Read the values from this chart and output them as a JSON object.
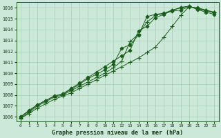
{
  "background_color": "#cce8d8",
  "line_color": "#1a5c1a",
  "title": "Graphe pression niveau de la mer (hPa)",
  "xlim": [
    -0.5,
    23.5
  ],
  "ylim": [
    1005.6,
    1016.5
  ],
  "yticks": [
    1006,
    1007,
    1008,
    1009,
    1010,
    1011,
    1012,
    1013,
    1014,
    1015,
    1016
  ],
  "xticks": [
    0,
    1,
    2,
    3,
    4,
    5,
    6,
    7,
    8,
    9,
    10,
    11,
    12,
    13,
    14,
    15,
    16,
    17,
    18,
    19,
    20,
    21,
    22,
    23
  ],
  "series": [
    {
      "y": [
        1006.0,
        1006.5,
        1007.1,
        1007.5,
        1007.9,
        1008.1,
        1008.5,
        1009.0,
        1009.5,
        1009.9,
        1010.3,
        1010.8,
        1012.3,
        1012.6,
        1013.5,
        1015.2,
        1015.4,
        1015.5,
        1015.7,
        1015.8,
        1016.1,
        1016.0,
        1015.8,
        1015.6
      ],
      "marker": "D",
      "ms": 2.5
    },
    {
      "y": [
        1005.9,
        1006.4,
        1007.0,
        1007.4,
        1007.8,
        1008.0,
        1008.4,
        1008.8,
        1009.2,
        1009.6,
        1010.0,
        1010.5,
        1011.1,
        1012.9,
        1013.6,
        1014.7,
        1015.3,
        1015.5,
        1015.8,
        1016.0,
        1016.15,
        1015.9,
        1015.75,
        1015.55
      ],
      "marker": "+",
      "ms": 4.0
    },
    {
      "y": [
        1006.0,
        1006.6,
        1007.1,
        1007.5,
        1007.9,
        1008.1,
        1008.6,
        1009.1,
        1009.6,
        1010.1,
        1010.6,
        1011.1,
        1011.6,
        1012.1,
        1013.9,
        1014.3,
        1015.1,
        1015.4,
        1015.75,
        1016.05,
        1016.15,
        1015.85,
        1015.6,
        1015.4
      ],
      "marker": "D",
      "ms": 2.5
    },
    {
      "y": [
        1005.85,
        1006.3,
        1006.8,
        1007.2,
        1007.6,
        1007.9,
        1008.2,
        1008.6,
        1009.0,
        1009.4,
        1009.8,
        1010.2,
        1010.6,
        1011.0,
        1011.4,
        1011.9,
        1012.4,
        1013.3,
        1014.3,
        1015.3,
        1016.1,
        1015.95,
        1015.75,
        1015.55
      ],
      "marker": "+",
      "ms": 4.0
    }
  ]
}
